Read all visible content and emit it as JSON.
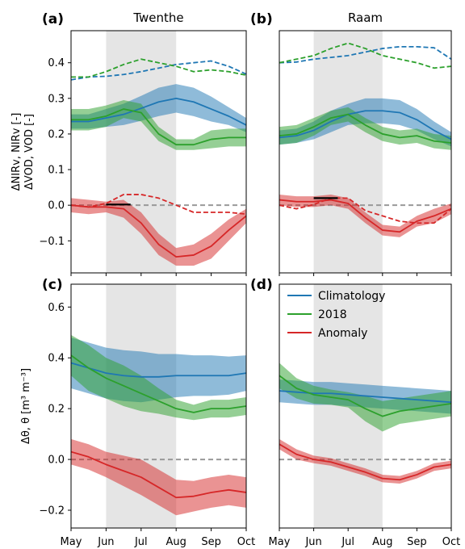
{
  "chart_data": [
    {
      "panel_label": "(a)",
      "title": "Twenthe",
      "type": "line",
      "ylabel": "ΔNIRv, NIRv [-]\nΔVOD, VOD [-]",
      "ylim": [
        -0.19,
        0.49
      ],
      "yticks": [
        -0.1,
        0.0,
        0.1,
        0.2,
        0.3,
        0.4
      ],
      "ytick_labels": [
        "−0.1",
        "0.0",
        "0.1",
        "0.2",
        "0.3",
        "0.4"
      ],
      "xlim": [
        0,
        5
      ],
      "xtick_labels": [
        "May",
        "Jun",
        "Jul",
        "Aug",
        "Sep",
        "Oct"
      ],
      "shade": [
        1,
        3
      ],
      "zero_line": true,
      "series": [
        {
          "role": "climatology",
          "style": "solid",
          "color": "#1f77b4",
          "x": [
            0,
            0.5,
            1,
            1.5,
            2,
            2.5,
            3,
            3.5,
            4,
            4.5,
            5
          ],
          "y": [
            0.235,
            0.235,
            0.245,
            0.255,
            0.272,
            0.29,
            0.3,
            0.29,
            0.27,
            0.25,
            0.225
          ],
          "band": [
            0.02,
            0.02,
            0.025,
            0.03,
            0.035,
            0.04,
            0.04,
            0.04,
            0.035,
            0.025,
            0.02
          ]
        },
        {
          "role": "2018",
          "style": "solid",
          "color": "#2ca02c",
          "x": [
            0,
            0.5,
            1,
            1.5,
            2,
            2.5,
            3,
            3.5,
            4,
            4.5,
            5
          ],
          "y": [
            0.24,
            0.24,
            0.25,
            0.27,
            0.26,
            0.2,
            0.17,
            0.17,
            0.185,
            0.19,
            0.19
          ],
          "band": [
            0.03,
            0.03,
            0.03,
            0.025,
            0.025,
            0.02,
            0.015,
            0.015,
            0.025,
            0.025,
            0.025
          ]
        },
        {
          "role": "anomaly",
          "style": "solid",
          "color": "#d62728",
          "x": [
            0,
            0.5,
            1,
            1.5,
            2,
            2.5,
            3,
            3.5,
            4,
            4.5,
            5
          ],
          "y": [
            0.0,
            -0.005,
            -0.005,
            -0.01,
            -0.05,
            -0.11,
            -0.145,
            -0.14,
            -0.115,
            -0.07,
            -0.03
          ],
          "band": [
            0.02,
            0.02,
            0.015,
            0.025,
            0.03,
            0.03,
            0.025,
            0.03,
            0.035,
            0.03,
            0.02
          ]
        },
        {
          "role": "climatology-vod",
          "style": "dashed",
          "color": "#1f77b4",
          "x": [
            0,
            0.5,
            1,
            1.5,
            2,
            2.5,
            3,
            3.5,
            4,
            4.5,
            5
          ],
          "y": [
            0.352,
            0.36,
            0.362,
            0.367,
            0.375,
            0.385,
            0.395,
            0.4,
            0.405,
            0.39,
            0.368
          ]
        },
        {
          "role": "2018-vod",
          "style": "dashed",
          "color": "#2ca02c",
          "x": [
            0,
            0.5,
            1,
            1.5,
            2,
            2.5,
            3,
            3.5,
            4,
            4.5,
            5
          ],
          "y": [
            0.36,
            0.36,
            0.375,
            0.395,
            0.41,
            0.4,
            0.39,
            0.375,
            0.38,
            0.375,
            0.365
          ]
        },
        {
          "role": "anomaly-vod",
          "style": "dashed",
          "color": "#d62728",
          "x": [
            0,
            0.5,
            1,
            1.5,
            2,
            2.5,
            3,
            3.5,
            4,
            4.5,
            5
          ],
          "y": [
            0.0,
            -0.005,
            0.005,
            0.03,
            0.03,
            0.02,
            0.0,
            -0.02,
            -0.02,
            -0.02,
            -0.025
          ]
        },
        {
          "role": "marker",
          "style": "solid",
          "color": "#000000",
          "x": [
            1.0,
            1.7
          ],
          "y": [
            0.002,
            0.002
          ]
        }
      ]
    },
    {
      "panel_label": "(b)",
      "title": "Raam",
      "type": "line",
      "ylim": [
        -0.19,
        0.49
      ],
      "xlim": [
        0,
        5
      ],
      "xtick_labels": [
        "May",
        "Jun",
        "Jul",
        "Aug",
        "Sep",
        "Oct"
      ],
      "shade": [
        1,
        3
      ],
      "zero_line": true,
      "series": [
        {
          "role": "climatology",
          "style": "solid",
          "color": "#1f77b4",
          "x": [
            0,
            0.5,
            1,
            1.5,
            2,
            2.5,
            3,
            3.5,
            4,
            4.5,
            5
          ],
          "y": [
            0.19,
            0.195,
            0.21,
            0.235,
            0.255,
            0.265,
            0.265,
            0.26,
            0.24,
            0.21,
            0.185
          ],
          "band": [
            0.02,
            0.02,
            0.025,
            0.03,
            0.03,
            0.035,
            0.035,
            0.035,
            0.03,
            0.025,
            0.02
          ]
        },
        {
          "role": "2018",
          "style": "solid",
          "color": "#2ca02c",
          "x": [
            0,
            0.5,
            1,
            1.5,
            2,
            2.5,
            3,
            3.5,
            4,
            4.5,
            5
          ],
          "y": [
            0.195,
            0.2,
            0.22,
            0.245,
            0.255,
            0.225,
            0.2,
            0.19,
            0.195,
            0.18,
            0.175
          ],
          "band": [
            0.025,
            0.025,
            0.025,
            0.02,
            0.02,
            0.02,
            0.02,
            0.02,
            0.02,
            0.02,
            0.02
          ]
        },
        {
          "role": "anomaly",
          "style": "solid",
          "color": "#d62728",
          "x": [
            0,
            0.5,
            1,
            1.5,
            2,
            2.5,
            3,
            3.5,
            4,
            4.5,
            5
          ],
          "y": [
            0.015,
            0.01,
            0.01,
            0.015,
            0.005,
            -0.035,
            -0.07,
            -0.075,
            -0.045,
            -0.03,
            -0.01
          ],
          "band": [
            0.015,
            0.015,
            0.015,
            0.015,
            0.015,
            0.015,
            0.015,
            0.015,
            0.015,
            0.02,
            0.015
          ]
        },
        {
          "role": "climatology-vod",
          "style": "dashed",
          "color": "#1f77b4",
          "x": [
            0,
            0.5,
            1,
            1.5,
            2,
            2.5,
            3,
            3.5,
            4,
            4.5,
            5
          ],
          "y": [
            0.4,
            0.402,
            0.41,
            0.415,
            0.42,
            0.43,
            0.44,
            0.445,
            0.445,
            0.442,
            0.41
          ]
        },
        {
          "role": "2018-vod",
          "style": "dashed",
          "color": "#2ca02c",
          "x": [
            0,
            0.5,
            1,
            1.5,
            2,
            2.5,
            3,
            3.5,
            4,
            4.5,
            5
          ],
          "y": [
            0.4,
            0.41,
            0.42,
            0.44,
            0.455,
            0.44,
            0.42,
            0.41,
            0.4,
            0.385,
            0.39
          ]
        },
        {
          "role": "anomaly-vod",
          "style": "dashed",
          "color": "#d62728",
          "x": [
            0,
            0.5,
            1,
            1.5,
            2,
            2.5,
            3,
            3.5,
            4,
            4.5,
            5
          ],
          "y": [
            0.0,
            -0.01,
            0.002,
            0.02,
            0.02,
            -0.015,
            -0.03,
            -0.045,
            -0.05,
            -0.05,
            -0.01
          ]
        },
        {
          "role": "marker",
          "style": "solid",
          "color": "#000000",
          "x": [
            1.0,
            1.7
          ],
          "y": [
            0.02,
            0.02
          ]
        }
      ]
    },
    {
      "panel_label": "(c)",
      "type": "line",
      "ylabel": "Δθ, θ [m³ m⁻³]",
      "ylim": [
        -0.27,
        0.69
      ],
      "yticks": [
        -0.2,
        0.0,
        0.2,
        0.4,
        0.6
      ],
      "ytick_labels": [
        "−0.2",
        "0.0",
        "0.2",
        "0.4",
        "0.6"
      ],
      "xlim": [
        0,
        5
      ],
      "xtick_labels": [
        "May",
        "Jun",
        "Jul",
        "Aug",
        "Sep",
        "Oct"
      ],
      "shade": [
        1,
        3
      ],
      "zero_line": true,
      "series": [
        {
          "role": "climatology",
          "style": "solid",
          "color": "#1f77b4",
          "x": [
            0,
            0.5,
            1,
            1.5,
            2,
            2.5,
            3,
            3.5,
            4,
            4.5,
            5
          ],
          "y": [
            0.38,
            0.36,
            0.34,
            0.33,
            0.325,
            0.325,
            0.33,
            0.33,
            0.33,
            0.33,
            0.34
          ],
          "band": [
            0.1,
            0.1,
            0.1,
            0.1,
            0.1,
            0.09,
            0.085,
            0.08,
            0.08,
            0.075,
            0.07
          ]
        },
        {
          "role": "2018",
          "style": "solid",
          "color": "#2ca02c",
          "x": [
            0,
            0.5,
            1,
            1.5,
            2,
            2.5,
            3,
            3.5,
            4,
            4.5,
            5
          ],
          "y": [
            0.41,
            0.36,
            0.32,
            0.29,
            0.26,
            0.23,
            0.2,
            0.185,
            0.2,
            0.2,
            0.21
          ],
          "band": [
            0.08,
            0.09,
            0.08,
            0.08,
            0.07,
            0.05,
            0.035,
            0.03,
            0.035,
            0.035,
            0.035
          ]
        },
        {
          "role": "anomaly",
          "style": "solid",
          "color": "#d62728",
          "x": [
            0,
            0.5,
            1,
            1.5,
            2,
            2.5,
            3,
            3.5,
            4,
            4.5,
            5
          ],
          "y": [
            0.03,
            0.01,
            -0.02,
            -0.045,
            -0.07,
            -0.11,
            -0.15,
            -0.145,
            -0.13,
            -0.12,
            -0.13
          ],
          "band": [
            0.05,
            0.05,
            0.05,
            0.06,
            0.07,
            0.07,
            0.07,
            0.06,
            0.06,
            0.06,
            0.06
          ]
        }
      ]
    },
    {
      "panel_label": "(d)",
      "type": "line",
      "ylim": [
        -0.27,
        0.69
      ],
      "xlim": [
        0,
        5
      ],
      "xtick_labels": [
        "May",
        "Jun",
        "Jul",
        "Aug",
        "Sep",
        "Oct"
      ],
      "shade": [
        1,
        3
      ],
      "zero_line": true,
      "legend_position": "upper-right",
      "series": [
        {
          "role": "climatology",
          "style": "solid",
          "color": "#1f77b4",
          "x": [
            0,
            0.5,
            1,
            1.5,
            2,
            2.5,
            3,
            3.5,
            4,
            4.5,
            5
          ],
          "y": [
            0.27,
            0.265,
            0.26,
            0.26,
            0.255,
            0.25,
            0.245,
            0.24,
            0.235,
            0.23,
            0.225
          ],
          "band": [
            0.045,
            0.045,
            0.045,
            0.045,
            0.045,
            0.045,
            0.045,
            0.045,
            0.045,
            0.045,
            0.045
          ]
        },
        {
          "role": "2018",
          "style": "solid",
          "color": "#2ca02c",
          "x": [
            0,
            0.5,
            1,
            1.5,
            2,
            2.5,
            3,
            3.5,
            4,
            4.5,
            5
          ],
          "y": [
            0.33,
            0.28,
            0.255,
            0.245,
            0.235,
            0.2,
            0.17,
            0.19,
            0.2,
            0.21,
            0.22
          ],
          "band": [
            0.05,
            0.04,
            0.035,
            0.03,
            0.03,
            0.05,
            0.06,
            0.05,
            0.05,
            0.05,
            0.05
          ]
        },
        {
          "role": "anomaly",
          "style": "solid",
          "color": "#d62728",
          "x": [
            0,
            0.5,
            1,
            1.5,
            2,
            2.5,
            3,
            3.5,
            4,
            4.5,
            5
          ],
          "y": [
            0.06,
            0.02,
            0.0,
            -0.01,
            -0.03,
            -0.05,
            -0.075,
            -0.08,
            -0.06,
            -0.03,
            -0.02
          ],
          "band": [
            0.02,
            0.02,
            0.015,
            0.015,
            0.015,
            0.015,
            0.015,
            0.015,
            0.015,
            0.015,
            0.015
          ]
        }
      ]
    }
  ],
  "legend": [
    {
      "label": "Climatology",
      "color": "#1f77b4"
    },
    {
      "label": "2018",
      "color": "#2ca02c"
    },
    {
      "label": "Anomaly",
      "color": "#d62728"
    }
  ],
  "colors": {
    "climatology": "#1f77b4",
    "year2018": "#2ca02c",
    "anomaly": "#d62728",
    "shade": "#e5e5e5",
    "zero_line": "#999999"
  }
}
